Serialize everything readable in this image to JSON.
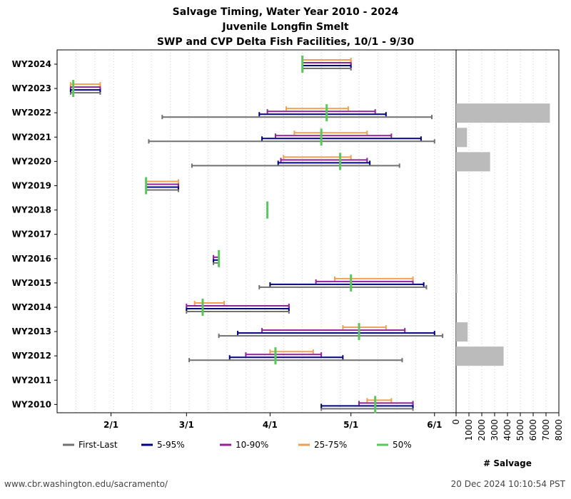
{
  "chart_data": {
    "type": "range-timeline",
    "title": [
      "Salvage Timing, Water Year 2010 - 2024",
      "Juvenile Longfin Smelt",
      "SWP and CVP Delta Fish Facilities, 10/1 - 9/30"
    ],
    "x_ticks": [
      {
        "label": "2/1",
        "date": "2/1"
      },
      {
        "label": "3/1",
        "date": "3/1"
      },
      {
        "label": "4/1",
        "date": "4/1"
      },
      {
        "label": "5/1",
        "date": "5/1"
      },
      {
        "label": "6/1",
        "date": "6/1"
      }
    ],
    "x_range": [
      "1/12",
      "6/9"
    ],
    "salvage_axis": {
      "label": "# Salvage",
      "range": [
        0,
        8000
      ],
      "ticks": [
        0,
        1000,
        2000,
        3000,
        4000,
        5000,
        6000,
        7000,
        8000
      ]
    },
    "grid": "vertical dotted",
    "legend_position": "bottom",
    "series": [
      {
        "name": "First-Last",
        "color": "#707070"
      },
      {
        "name": "5-95%",
        "color": "#000080"
      },
      {
        "name": "10-90%",
        "color": "#90229a"
      },
      {
        "name": "25-75%",
        "color": "#f0a050"
      },
      {
        "name": "50%",
        "color": "#58c85a"
      }
    ],
    "years": [
      {
        "label": "WY2024",
        "first_last": [
          "4/13",
          "5/1"
        ],
        "p5_95": [
          "4/13",
          "5/1"
        ],
        "p10_90": [
          "4/13",
          "5/1"
        ],
        "p25_75": [
          "4/13",
          "5/1"
        ],
        "median": "4/13",
        "salvage": 0
      },
      {
        "label": "WY2023",
        "first_last": [
          "1/17",
          "1/28"
        ],
        "p5_95": [
          "1/17",
          "1/28"
        ],
        "p10_90": [
          "1/17",
          "1/28"
        ],
        "p25_75": [
          "1/17",
          "1/28"
        ],
        "median": "1/18",
        "salvage": 0
      },
      {
        "label": "WY2022",
        "first_last": [
          "2/20",
          "5/31"
        ],
        "p5_95": [
          "3/28",
          "5/14"
        ],
        "p10_90": [
          "3/31",
          "5/10"
        ],
        "p25_75": [
          "4/7",
          "4/30"
        ],
        "median": "4/22",
        "salvage": 7300
      },
      {
        "label": "WY2021",
        "first_last": [
          "2/15",
          "6/1"
        ],
        "p5_95": [
          "3/29",
          "5/27"
        ],
        "p10_90": [
          "4/3",
          "5/16"
        ],
        "p25_75": [
          "4/10",
          "5/7"
        ],
        "median": "4/20",
        "salvage": 850
      },
      {
        "label": "WY2020",
        "first_last": [
          "3/3",
          "5/19"
        ],
        "p5_95": [
          "4/4",
          "5/8"
        ],
        "p10_90": [
          "4/5",
          "5/7"
        ],
        "p25_75": [
          "4/6",
          "5/1"
        ],
        "median": "4/27",
        "salvage": 2650
      },
      {
        "label": "WY2019",
        "first_last": [
          "2/14",
          "2/26"
        ],
        "p5_95": [
          "2/14",
          "2/26"
        ],
        "p10_90": [
          "2/14",
          "2/26"
        ],
        "p25_75": [
          "2/14",
          "2/26"
        ],
        "median": "2/14",
        "salvage": 0
      },
      {
        "label": "WY2018",
        "first_last": null,
        "p5_95": null,
        "p10_90": null,
        "p25_75": null,
        "median": "3/31",
        "salvage": 0
      },
      {
        "label": "WY2017",
        "first_last": null,
        "p5_95": null,
        "p10_90": null,
        "p25_75": null,
        "median": null,
        "salvage": 0
      },
      {
        "label": "WY2016",
        "first_last": [
          "3/11",
          "3/13"
        ],
        "p5_95": [
          "3/11",
          "3/13"
        ],
        "p10_90": [
          "3/11",
          "3/13"
        ],
        "p25_75": [
          "3/13",
          "3/13"
        ],
        "median": "3/13",
        "salvage": 0
      },
      {
        "label": "WY2015",
        "first_last": [
          "3/28",
          "5/29"
        ],
        "p5_95": [
          "4/1",
          "5/28"
        ],
        "p10_90": [
          "4/18",
          "5/24"
        ],
        "p25_75": [
          "4/25",
          "5/24"
        ],
        "median": "5/1",
        "salvage": 100
      },
      {
        "label": "WY2014",
        "first_last": [
          "3/1",
          "4/8"
        ],
        "p5_95": [
          "3/1",
          "4/8"
        ],
        "p10_90": [
          "3/1",
          "4/8"
        ],
        "p25_75": [
          "3/4",
          "3/15"
        ],
        "median": "3/7",
        "salvage": 0
      },
      {
        "label": "WY2013",
        "first_last": [
          "3/13",
          "6/4"
        ],
        "p5_95": [
          "3/20",
          "6/1"
        ],
        "p10_90": [
          "3/29",
          "5/21"
        ],
        "p25_75": [
          "4/28",
          "5/14"
        ],
        "median": "5/4",
        "salvage": 900
      },
      {
        "label": "WY2012",
        "first_last": [
          "3/2",
          "5/20"
        ],
        "p5_95": [
          "3/17",
          "4/28"
        ],
        "p10_90": [
          "3/23",
          "4/20"
        ],
        "p25_75": [
          "4/1",
          "4/17"
        ],
        "median": "4/3",
        "salvage": 3700
      },
      {
        "label": "WY2011",
        "first_last": null,
        "p5_95": null,
        "p10_90": null,
        "p25_75": null,
        "median": null,
        "salvage": 0
      },
      {
        "label": "WY2010",
        "first_last": [
          "4/20",
          "5/24"
        ],
        "p5_95": [
          "4/20",
          "5/24"
        ],
        "p10_90": [
          "5/4",
          "5/24"
        ],
        "p25_75": [
          "5/7",
          "5/16"
        ],
        "median": "5/10",
        "salvage": 0
      }
    ]
  },
  "footer": {
    "url": "www.cbr.washington.edu/sacramento/",
    "timestamp": "20 Dec 2024 10:10:54 PST"
  }
}
